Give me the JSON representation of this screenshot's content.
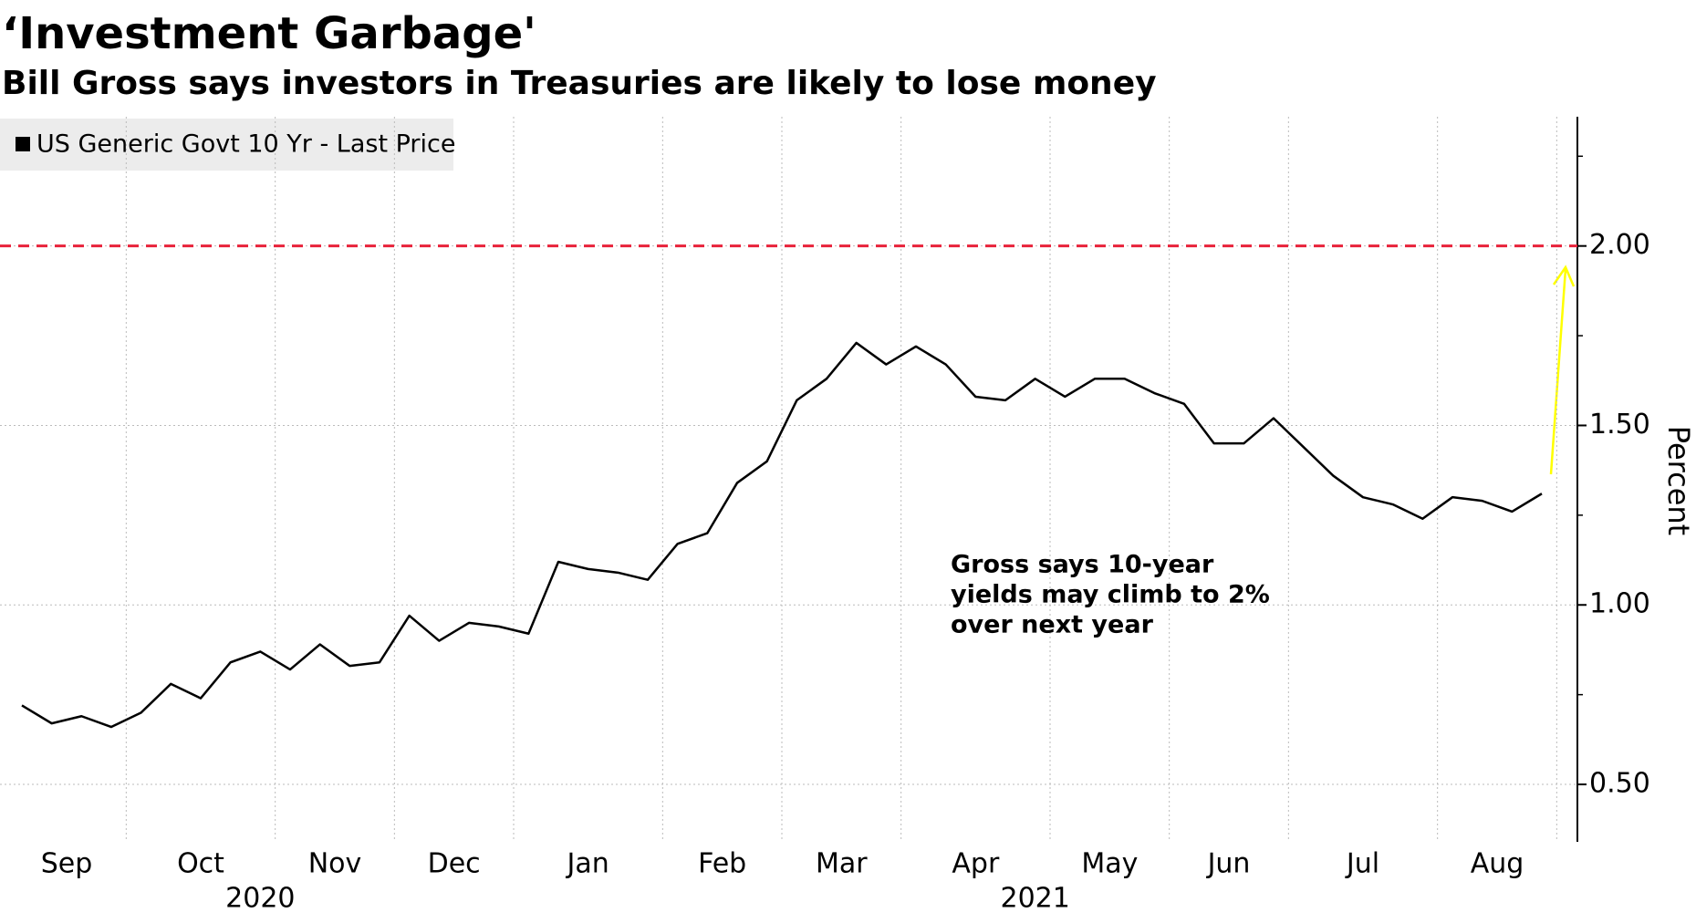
{
  "chart_data": {
    "type": "line",
    "title": "‘Investment Garbage'",
    "subtitle": "Bill Gross says investors in Treasuries are likely to lose money",
    "y_label": "Percent",
    "categories": [
      "Sep",
      null,
      null,
      null,
      "Oct",
      null,
      null,
      null,
      null,
      "Nov",
      null,
      null,
      null,
      "Dec",
      null,
      null,
      null,
      "Jan",
      null,
      null,
      null,
      null,
      "Feb",
      null,
      null,
      null,
      "Mar",
      null,
      null,
      null,
      "Apr",
      null,
      null,
      null,
      null,
      "May",
      null,
      null,
      null,
      "Jun",
      null,
      null,
      null,
      "Jul",
      null,
      null,
      null,
      null,
      "Aug",
      null,
      null,
      null
    ],
    "year_labels": [
      "2020",
      "2021"
    ],
    "series": [
      {
        "name": "US Generic Govt 10 Yr - Last Price",
        "color": "#000000",
        "values": [
          0.72,
          0.67,
          0.69,
          0.66,
          0.7,
          0.78,
          0.74,
          0.84,
          0.87,
          0.82,
          0.89,
          0.83,
          0.84,
          0.97,
          0.9,
          0.95,
          0.94,
          0.92,
          1.12,
          1.1,
          1.09,
          1.07,
          1.17,
          1.2,
          1.34,
          1.4,
          1.57,
          1.63,
          1.73,
          1.67,
          1.72,
          1.67,
          1.58,
          1.57,
          1.63,
          1.58,
          1.63,
          1.63,
          1.59,
          1.56,
          1.45,
          1.45,
          1.52,
          1.44,
          1.36,
          1.3,
          1.28,
          1.24,
          1.3,
          1.29,
          1.26,
          1.31
        ]
      }
    ],
    "ylim": [
      0.34,
      2.36
    ],
    "yticks": [
      {
        "value": 0.5,
        "label": "0.50"
      },
      {
        "value": 1,
        "label": "1.00"
      },
      {
        "value": 1.5,
        "label": "1.50"
      },
      {
        "value": 2,
        "label": "2.00"
      }
    ],
    "yticks_minor": [
      0.75,
      1.25,
      1.75,
      2.25
    ],
    "grid": true,
    "reference_line": {
      "value": 2,
      "color": "#e8223a"
    },
    "annotation": {
      "lines": [
        "Gross says 10-year",
        "yields may climb to 2%",
        "over next year"
      ],
      "color": "#ffff00"
    }
  }
}
